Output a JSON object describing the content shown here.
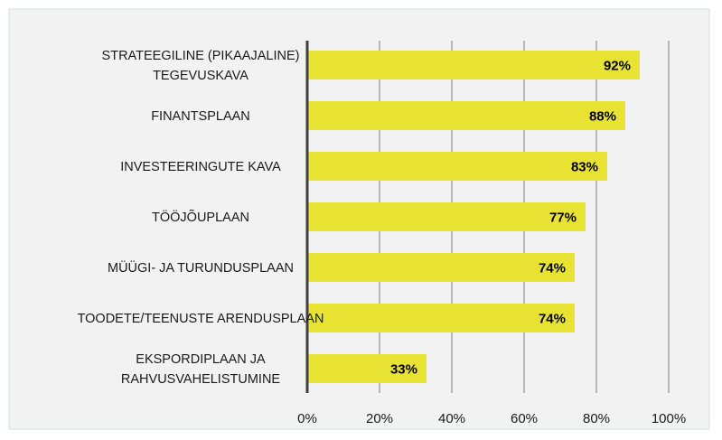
{
  "chart_data": {
    "type": "bar",
    "orientation": "horizontal",
    "categories": [
      [
        "STRATEEGILINE (PIKAAJALINE)",
        "TEGEVUSKAVA"
      ],
      [
        "FINANTSPLAAN"
      ],
      [
        "INVESTEERINGUTE KAVA"
      ],
      [
        "TÖÖJÕUPLAAN"
      ],
      [
        "MÜÜGI- JA TURUNDUSPLAAN"
      ],
      [
        "TOODETE/TEENUSTE ARENDUSPLAAN"
      ],
      [
        "EKSPORDIPLAAN JA",
        "RAHVUSVAHELISTUMINE"
      ]
    ],
    "values": [
      92,
      88,
      83,
      77,
      74,
      74,
      33
    ],
    "data_labels": [
      "92%",
      "88%",
      "83%",
      "77%",
      "74%",
      "74%",
      "33%"
    ],
    "xlim": [
      0,
      100
    ],
    "xticks": [
      0,
      20,
      40,
      60,
      80,
      100
    ],
    "xtick_labels": [
      "0%",
      "20%",
      "40%",
      "60%",
      "80%",
      "100%"
    ],
    "title": "",
    "xlabel": "",
    "ylabel": "",
    "grid": true,
    "legend": "none",
    "colors": {
      "bar": "#e8e232",
      "background": "#f2f2f2"
    }
  }
}
